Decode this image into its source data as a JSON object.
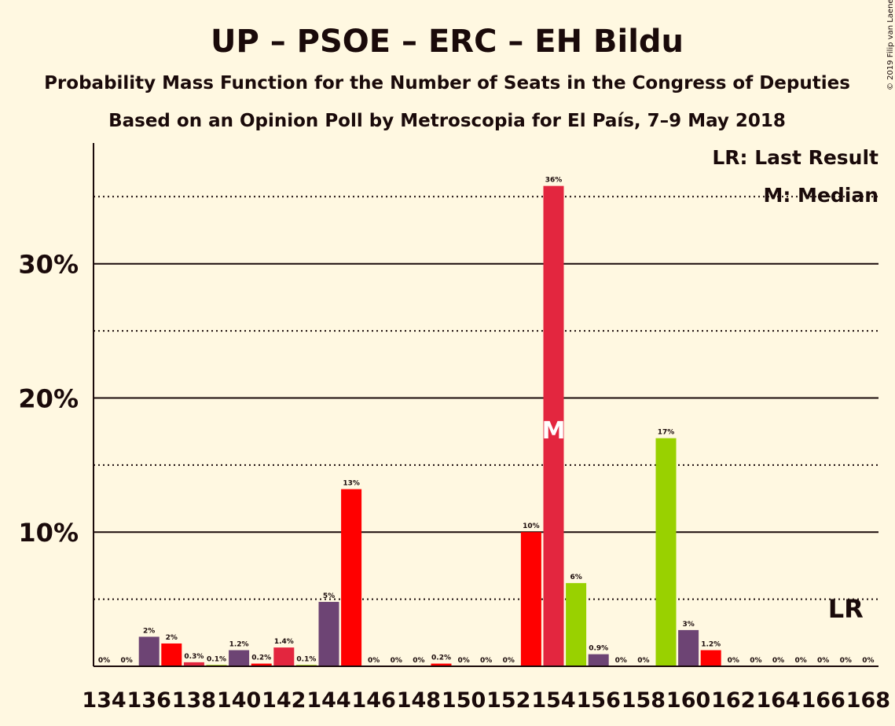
{
  "chart_data": {
    "type": "bar",
    "title": "UP – PSOE – ERC – EH Bildu",
    "subtitle": "Probability Mass Function for the Number of Seats in the Congress of Deputies",
    "subtitle2": "Based on an Opinion Poll by Metroscopia for El País, 7–9 May 2018",
    "copyright": "© 2019 Filip van Laenen",
    "legend": {
      "lr": "LR: Last Result",
      "m": "M: Median",
      "placement": "top-right"
    },
    "ylim": [
      0,
      39
    ],
    "yticks": [
      {
        "value": 10,
        "label": "10%"
      },
      {
        "value": 20,
        "label": "20%"
      },
      {
        "value": 30,
        "label": "30%"
      }
    ],
    "dotted_lines": [
      5,
      15,
      25,
      35
    ],
    "x_ticks": [
      "134",
      "136",
      "138",
      "140",
      "142",
      "144",
      "146",
      "148",
      "150",
      "152",
      "154",
      "156",
      "158",
      "160",
      "162",
      "164",
      "166",
      "168"
    ],
    "median_seat": 154,
    "last_result_seat": 167,
    "markers": {
      "median": "M",
      "last_result": "LR"
    },
    "colors": {
      "purple": "#6d4474",
      "red": "#ff0000",
      "crimson": "#e3263f",
      "green": "#99d100"
    },
    "bars": [
      {
        "seat": 134,
        "value": 0,
        "label": "0%",
        "color": "purple"
      },
      {
        "seat": 135,
        "value": 0,
        "label": "0%",
        "color": "red"
      },
      {
        "seat": 136,
        "value": 2.2,
        "label": "2%",
        "color": "purple"
      },
      {
        "seat": 137,
        "value": 1.7,
        "label": "2%",
        "color": "red"
      },
      {
        "seat": 138,
        "value": 0.3,
        "label": "0.3%",
        "color": "crimson"
      },
      {
        "seat": 139,
        "value": 0.1,
        "label": "0.1%",
        "color": "green"
      },
      {
        "seat": 140,
        "value": 1.2,
        "label": "1.2%",
        "color": "purple"
      },
      {
        "seat": 141,
        "value": 0.2,
        "label": "0.2%",
        "color": "red"
      },
      {
        "seat": 142,
        "value": 1.4,
        "label": "1.4%",
        "color": "crimson"
      },
      {
        "seat": 143,
        "value": 0.1,
        "label": "0.1%",
        "color": "green"
      },
      {
        "seat": 144,
        "value": 4.8,
        "label": "5%",
        "color": "purple"
      },
      {
        "seat": 145,
        "value": 13.2,
        "label": "13%",
        "color": "red"
      },
      {
        "seat": 146,
        "value": 0,
        "label": "0%",
        "color": "crimson"
      },
      {
        "seat": 147,
        "value": 0,
        "label": "0%",
        "color": "green"
      },
      {
        "seat": 148,
        "value": 0,
        "label": "0%",
        "color": "purple"
      },
      {
        "seat": 149,
        "value": 0.2,
        "label": "0.2%",
        "color": "red"
      },
      {
        "seat": 150,
        "value": 0,
        "label": "0%",
        "color": "crimson"
      },
      {
        "seat": 151,
        "value": 0,
        "label": "0%",
        "color": "green"
      },
      {
        "seat": 152,
        "value": 0,
        "label": "0%",
        "color": "purple"
      },
      {
        "seat": 153,
        "value": 10,
        "label": "10%",
        "color": "red"
      },
      {
        "seat": 154,
        "value": 35.8,
        "label": "36%",
        "color": "crimson"
      },
      {
        "seat": 155,
        "value": 6.2,
        "label": "6%",
        "color": "green"
      },
      {
        "seat": 156,
        "value": 0.9,
        "label": "0.9%",
        "color": "purple"
      },
      {
        "seat": 157,
        "value": 0,
        "label": "0%",
        "color": "red"
      },
      {
        "seat": 158,
        "value": 0,
        "label": "0%",
        "color": "crimson"
      },
      {
        "seat": 159,
        "value": 17,
        "label": "17%",
        "color": "green"
      },
      {
        "seat": 160,
        "value": 2.7,
        "label": "3%",
        "color": "purple"
      },
      {
        "seat": 161,
        "value": 1.2,
        "label": "1.2%",
        "color": "red"
      },
      {
        "seat": 162,
        "value": 0,
        "label": "0%",
        "color": "crimson"
      },
      {
        "seat": 163,
        "value": 0,
        "label": "0%",
        "color": "green"
      },
      {
        "seat": 164,
        "value": 0,
        "label": "0%",
        "color": "purple"
      },
      {
        "seat": 165,
        "value": 0,
        "label": "0%",
        "color": "red"
      },
      {
        "seat": 166,
        "value": 0,
        "label": "0%",
        "color": "crimson"
      },
      {
        "seat": 167,
        "value": 0,
        "label": "0%",
        "color": "green"
      },
      {
        "seat": 168,
        "value": 0,
        "label": "0%",
        "color": "purple"
      }
    ]
  }
}
